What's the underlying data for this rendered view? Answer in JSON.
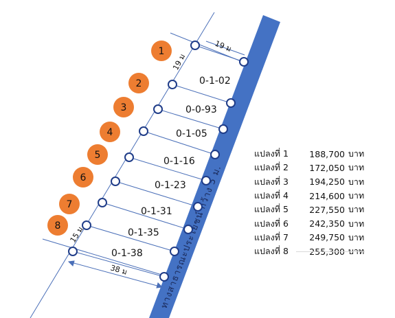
{
  "plots": [
    {
      "number": "1",
      "area": "",
      "price_label": "แปลงที่ 1",
      "price": "188,700",
      "unit": "บาท"
    },
    {
      "number": "2",
      "area": "0-1-02",
      "price_label": "แปลงที่ 2",
      "price": "172,050",
      "unit": "บาท"
    },
    {
      "number": "3",
      "area": "0-0-93",
      "price_label": "แปลงที่ 3",
      "price": "194,250",
      "unit": "บาท"
    },
    {
      "number": "4",
      "area": "0-1-05",
      "price_label": "แปลงที่ 4",
      "price": "214,600",
      "unit": "บาท"
    },
    {
      "number": "5",
      "area": "0-1-16",
      "price_label": "แปลงที่ 5",
      "price": "227,550",
      "unit": "บาท"
    },
    {
      "number": "6",
      "area": "0-1-23",
      "price_label": "แปลงที่ 6",
      "price": "242,350",
      "unit": "บาท"
    },
    {
      "number": "7",
      "area": "0-1-31",
      "price_label": "แปลงที่ 7",
      "price": "249,750",
      "unit": "บาท"
    },
    {
      "number": "8",
      "area": "0-1-35",
      "price_label": "แปลงที่ 8",
      "price": "255,300",
      "unit": "บาท"
    }
  ],
  "extra_area": "0-1-38",
  "dimensions": {
    "top_width": "19 ม",
    "top_side": "19 ม",
    "bottom_side": "15 ม",
    "bottom_width": "38 ม"
  },
  "road_label": "ทางสาธารณะประโยชน์ กว้าง 5 ม.",
  "colors": {
    "road": "#4472c4",
    "badge": "#ed7d31",
    "line": "#4a6fb8",
    "node_stroke": "#1f3c88"
  }
}
